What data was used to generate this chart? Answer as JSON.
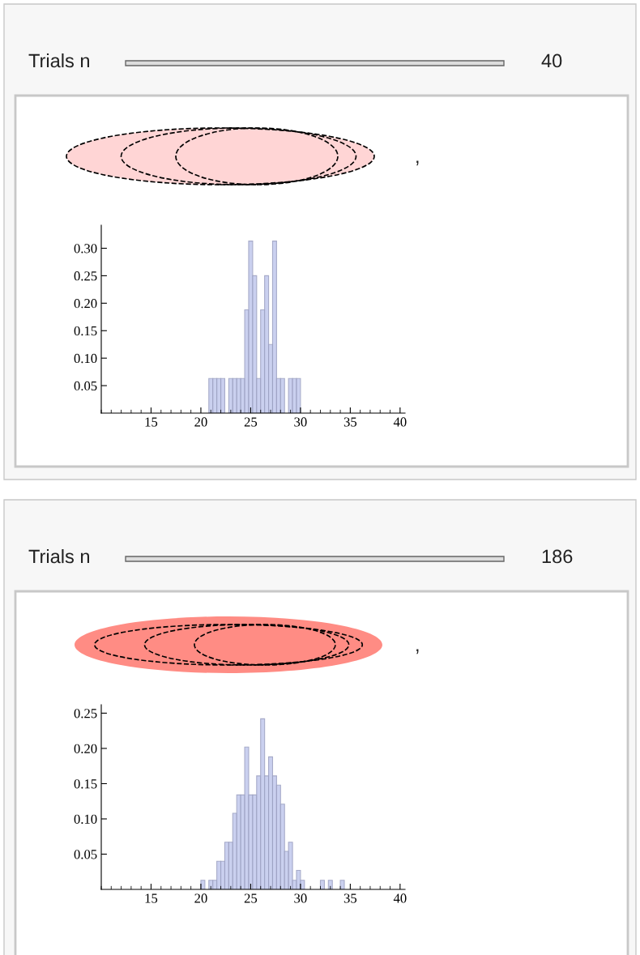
{
  "chart_data": [
    {
      "type": "histogram",
      "annotations": [
        "Trials n",
        "40",
        ","
      ],
      "color": "#c5cbee",
      "bins": [
        20.8,
        21.2,
        21.6,
        22.0,
        22.4,
        22.8,
        23.2,
        23.6,
        24.0,
        24.4,
        24.8,
        25.2,
        25.6,
        26.0,
        26.4,
        26.8,
        27.2,
        27.6,
        28.0,
        28.4,
        28.8,
        29.2,
        29.6,
        30.0
      ],
      "values": [
        0.063,
        0.063,
        0.063,
        0.063,
        0,
        0.063,
        0.063,
        0.063,
        0.063,
        0.188,
        0.313,
        0.25,
        0.063,
        0.188,
        0.25,
        0.125,
        0.313,
        0.063,
        0.063,
        0,
        0.063,
        0.063,
        0.063
      ],
      "xlim": [
        10,
        40.5
      ],
      "ylim": [
        0,
        0.342
      ],
      "xticks": [
        15,
        20,
        25,
        30,
        35,
        40
      ],
      "yticks": [
        {
          "value": 0.05,
          "label": "0.05"
        },
        {
          "value": 0.1,
          "label": "0.10"
        },
        {
          "value": 0.15,
          "label": "0.15"
        },
        {
          "value": 0.2,
          "label": "0.20"
        },
        {
          "value": 0.25,
          "label": "0.25"
        },
        {
          "value": 0.3,
          "label": "0.30"
        }
      ]
    },
    {
      "type": "histogram",
      "annotations": [
        "Trials n",
        "186",
        ","
      ],
      "color": "#c5cbee",
      "bins": [
        20.0,
        20.4,
        20.8,
        21.2,
        21.6,
        22.0,
        22.4,
        22.8,
        23.2,
        23.6,
        24.0,
        24.4,
        24.8,
        25.2,
        25.6,
        26.0,
        26.4,
        26.8,
        27.2,
        27.6,
        28.0,
        28.4,
        28.8,
        29.2,
        29.6,
        30.0,
        30.4,
        30.8,
        31.2,
        31.6,
        32.0,
        32.4,
        32.8,
        33.2,
        33.6,
        34.0,
        34.4
      ],
      "values": [
        0.013,
        0,
        0.013,
        0.013,
        0.04,
        0.04,
        0.067,
        0.067,
        0.108,
        0.134,
        0.134,
        0.202,
        0.134,
        0.134,
        0.161,
        0.242,
        0.161,
        0.188,
        0.161,
        0.148,
        0.121,
        0.054,
        0.067,
        0.013,
        0.027,
        0.013,
        0,
        0,
        0,
        0,
        0.013,
        0,
        0.013,
        0,
        0,
        0.013
      ],
      "xlim": [
        10,
        40.5
      ],
      "ylim": [
        0,
        0.262
      ],
      "xticks": [
        15,
        20,
        25,
        30,
        35,
        40
      ],
      "yticks": [
        {
          "value": 0.05,
          "label": "0.05"
        },
        {
          "value": 0.1,
          "label": "0.10"
        },
        {
          "value": 0.15,
          "label": "0.15"
        },
        {
          "value": 0.2,
          "label": "0.20"
        },
        {
          "value": 0.25,
          "label": "0.25"
        }
      ]
    }
  ]
}
